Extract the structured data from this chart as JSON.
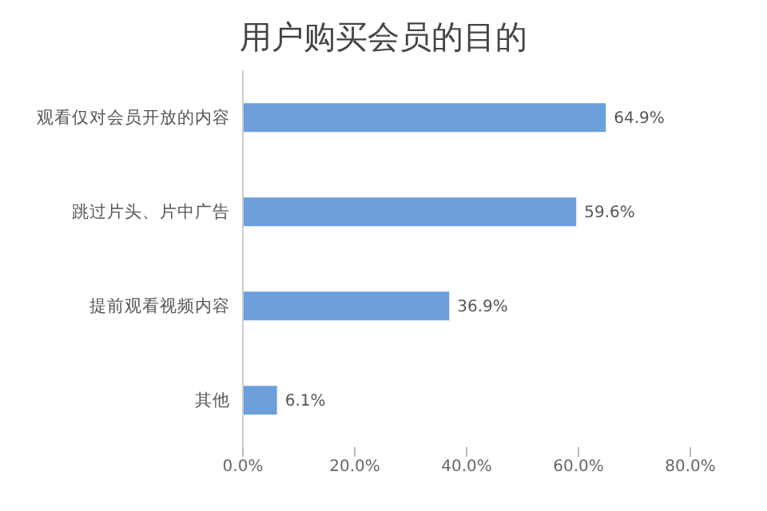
{
  "chart_data": {
    "type": "bar",
    "orientation": "horizontal",
    "title": "用户购买会员的目的",
    "categories": [
      "观看仅对会员开放的内容",
      "跳过片头、片中广告",
      "提前观看视频内容",
      "其他"
    ],
    "values": [
      64.9,
      59.6,
      36.9,
      6.1
    ],
    "color": "#6c9fdc",
    "value_labels": [
      "64.9%",
      "59.6%",
      "36.9%",
      "6.1%"
    ],
    "xlim": [
      0,
      80
    ],
    "xticks": [
      {
        "value": 0,
        "label": "0.0%"
      },
      {
        "value": 20,
        "label": "20.0%"
      },
      {
        "value": 40,
        "label": "40.0%"
      },
      {
        "value": 60,
        "label": "60.0%"
      },
      {
        "value": 80,
        "label": "80.0%"
      }
    ],
    "grid": false
  }
}
